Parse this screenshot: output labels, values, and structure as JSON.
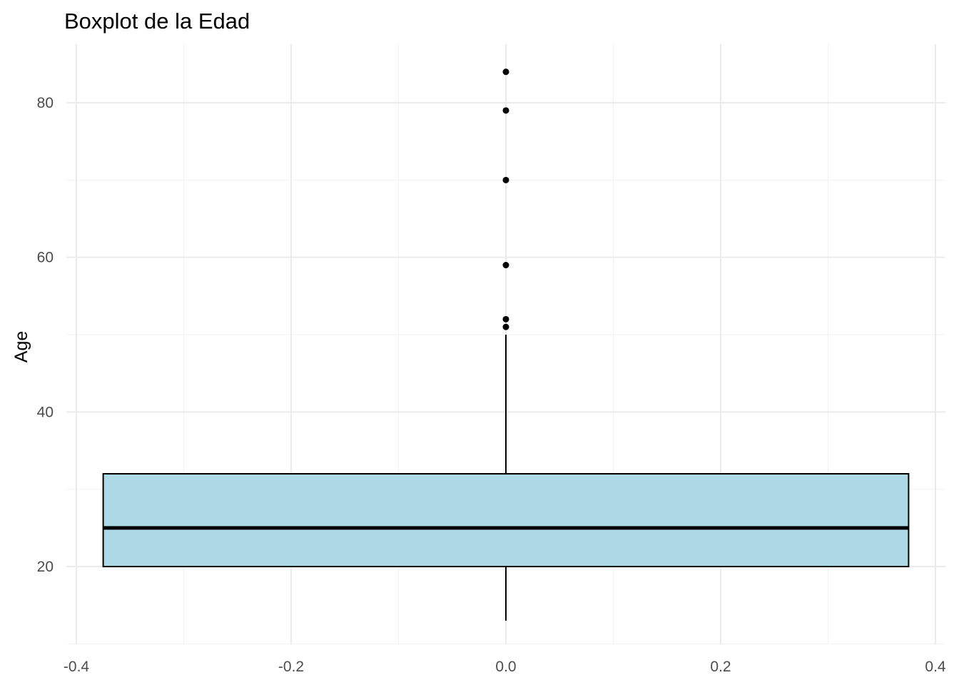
{
  "chart_data": {
    "type": "boxplot",
    "title": "Boxplot de la Edad",
    "xlabel": "",
    "ylabel": "Age",
    "xlim": [
      -0.4,
      0.4
    ],
    "ylim": [
      10,
      87
    ],
    "x_ticks": [
      -0.4,
      -0.2,
      0.0,
      0.2,
      0.4
    ],
    "x_tick_labels": [
      "-0.4",
      "-0.2",
      "0.0",
      "0.2",
      "0.4"
    ],
    "y_ticks": [
      20,
      40,
      60,
      80
    ],
    "y_tick_labels": [
      "20",
      "40",
      "60",
      "80"
    ],
    "grid": true,
    "box": {
      "x_center": 0.0,
      "x_left": -0.375,
      "x_right": 0.375,
      "q1": 20,
      "median": 25,
      "q3": 32,
      "whisker_low": 13,
      "whisker_high": 50,
      "outliers": [
        51,
        52,
        59,
        70,
        79,
        84
      ],
      "fill_color": "#add8e6",
      "line_color": "#000000"
    }
  }
}
